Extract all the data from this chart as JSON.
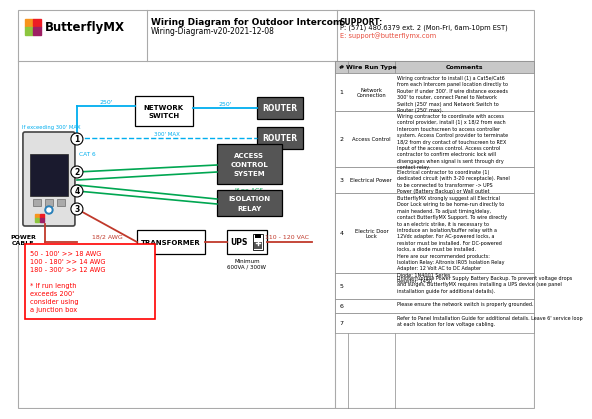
{
  "title": "Wiring Diagram for Outdoor Intercom",
  "subtitle": "Wiring-Diagram-v20-2021-12-08",
  "support_label": "SUPPORT:",
  "support_phone": "P: (571) 480.6379 ext. 2 (Mon-Fri, 6am-10pm EST)",
  "support_email": "E: support@butterflymx.com",
  "bg_color": "#ffffff",
  "cyan": "#00aeef",
  "green": "#00a651",
  "red": "#ff0000",
  "dark_red": "#c0392b",
  "gray_box": "#595959",
  "table_rows": [
    {
      "num": "1",
      "type": "Network\nConnection",
      "comment": "Wiring contractor to install (1) a Cat5e/Cat6\nfrom each Intercom panel location directly to\nRouter if under 300'. If wire distance exceeds\n300' to router, connect Panel to Network\nSwitch (250' max) and Network Switch to\nRouter (250' max)."
    },
    {
      "num": "2",
      "type": "Access Control",
      "comment": "Wiring contractor to coordinate with access\ncontrol provider, install (1) x 18/2 from each\nIntercom touchscreen to access controller\nsystem. Access Control provider to terminate\n18/2 from dry contact of touchscreen to REX\nInput of the access control. Access control\ncontractor to confirm electronic lock will\ndisengages when signal is sent through dry\ncontact relay."
    },
    {
      "num": "3",
      "type": "Electrical Power",
      "comment": "Electrical contractor to coordinate (1)\ndedicated circuit (with 3-20 receptacle). Panel\nto be connected to transformer -> UPS\nPower (Battery Backup) or Wall outlet"
    },
    {
      "num": "4",
      "type": "Electric Door\nLock",
      "comment": "ButterflyMX strongly suggest all Electrical\nDoor Lock wiring to be home-run directly to\nmain headend. To adjust timing/delay,\ncontact ButterflyMX Support. To wire directly\nto an electric strike, it is necessary to\nintroduce an isolation/buffer relay with a\n12Vdc adapter. For AC-powered locks, a\nresistor must be installed. For DC-powered\nlocks, a diode must be installed.\nHere are our recommended products:\nIsolation Relay: Altronix IR05 Isolation Relay\nAdapter: 12 Volt AC to DC Adapter\nDiode: 1N4001 Series\nResistor: 1450"
    },
    {
      "num": "5",
      "type": "",
      "comment": "Uninterruptible Power Supply Battery Backup. To prevent voltage drops\nand surges, ButterflyMX requires installing a UPS device (see panel\ninstallation guide for additional details)."
    },
    {
      "num": "6",
      "type": "",
      "comment": "Please ensure the network switch is properly grounded."
    },
    {
      "num": "7",
      "type": "",
      "comment": "Refer to Panel Installation Guide for additional details. Leave 6' service loop\nat each location for low voltage cabling."
    }
  ]
}
